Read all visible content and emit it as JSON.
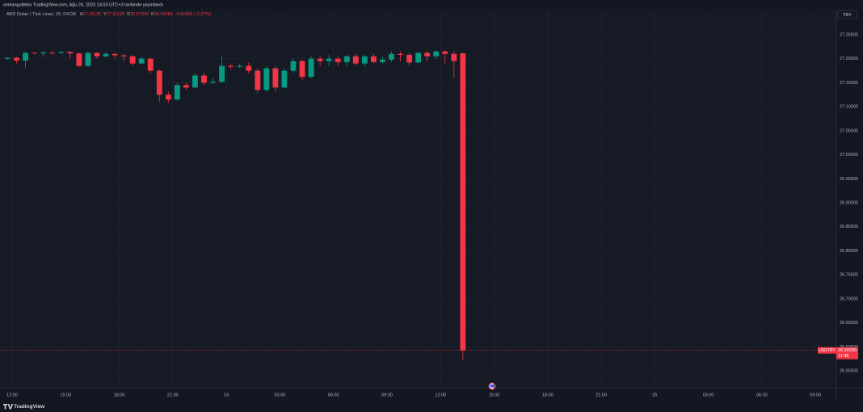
{
  "header": {
    "publisher": "serkangultekin TradingView.com, Ağu 24, 2023 14:03 UTC+3 tarihinde yayınlandı",
    "symbol_title": "ABD Doları / Türk Lirası, 15, FXCM",
    "legend": [
      {
        "key": "A",
        "value": "27.21135"
      },
      {
        "key": "Y",
        "value": "27.21135"
      },
      {
        "key": "D",
        "value": "26.57340"
      },
      {
        "key": "K",
        "value": "26.59280"
      }
    ],
    "change": "-0.61855 (-2.27%)",
    "currency": "TRY"
  },
  "footer": {
    "brand": "TradingView"
  },
  "chart_data": {
    "type": "candlestick",
    "up_color": "#089981",
    "down_color": "#f23645",
    "grid": true,
    "xlim": [
      -0.68,
      46.17
    ],
    "ylim": [
      26.515,
      27.302
    ],
    "xticks": [
      {
        "value": 0,
        "label": "12:00"
      },
      {
        "value": 3,
        "label": "15:00"
      },
      {
        "value": 6,
        "label": "18:00"
      },
      {
        "value": 9,
        "label": "21:00"
      },
      {
        "value": 12,
        "label": "24"
      },
      {
        "value": 15,
        "label": "03:00"
      },
      {
        "value": 18,
        "label": "06:00"
      },
      {
        "value": 21,
        "label": "09:00"
      },
      {
        "value": 24,
        "label": "12:00"
      },
      {
        "value": 27,
        "label": "15:00"
      },
      {
        "value": 30,
        "label": "18:00"
      },
      {
        "value": 33,
        "label": "21:00"
      },
      {
        "value": 36,
        "label": "25"
      },
      {
        "value": 39,
        "label": "03:00"
      },
      {
        "value": 42,
        "label": "06:00"
      },
      {
        "value": 45,
        "label": "09:00"
      }
    ],
    "yticks": [
      {
        "value": 27.25,
        "label": "27.25000"
      },
      {
        "value": 27.2,
        "label": "27.20000"
      },
      {
        "value": 27.15,
        "label": "27.15000"
      },
      {
        "value": 27.1,
        "label": "27.10000"
      },
      {
        "value": 27.05,
        "label": "27.05000"
      },
      {
        "value": 27.0,
        "label": "27.00000"
      },
      {
        "value": 26.95,
        "label": "26.95000"
      },
      {
        "value": 26.9,
        "label": "26.90000"
      },
      {
        "value": 26.85,
        "label": "26.85000"
      },
      {
        "value": 26.8,
        "label": "26.80000"
      },
      {
        "value": 26.75,
        "label": "26.75000"
      },
      {
        "value": 26.7,
        "label": "26.70000"
      },
      {
        "value": 26.65,
        "label": "26.65000"
      },
      {
        "value": 26.6,
        "label": "26.60000"
      },
      {
        "value": 26.55,
        "label": "26.55000"
      }
    ],
    "x": [
      -0.25,
      0.25,
      0.75,
      1.25,
      1.75,
      2.25,
      2.75,
      3.25,
      3.75,
      4.25,
      4.75,
      5.25,
      5.75,
      6.25,
      6.75,
      7.25,
      7.75,
      8.25,
      8.75,
      9.25,
      9.75,
      10.25,
      10.75,
      11.25,
      11.75,
      12.25,
      12.75,
      13.25,
      13.75,
      14.25,
      14.75,
      15.25,
      15.75,
      16.25,
      16.75,
      17.25,
      17.75,
      18.25,
      18.75,
      19.25,
      19.75,
      20.25,
      20.75,
      21.25,
      21.75,
      22.25,
      22.75,
      23.25,
      23.75,
      24.25,
      24.75,
      25.25
    ],
    "open": [
      27.2,
      27.202,
      27.196,
      27.212,
      27.211,
      27.213,
      27.212,
      27.214,
      27.211,
      27.185,
      27.212,
      27.205,
      27.21,
      27.207,
      27.205,
      27.19,
      27.2,
      27.175,
      27.125,
      27.115,
      27.145,
      27.14,
      27.165,
      27.15,
      27.152,
      27.185,
      27.183,
      27.185,
      27.175,
      27.135,
      27.18,
      27.14,
      27.175,
      27.195,
      27.162,
      27.2,
      27.195,
      27.2,
      27.193,
      27.205,
      27.19,
      27.205,
      27.193,
      27.198,
      27.21,
      27.208,
      27.192,
      27.212,
      27.205,
      27.215,
      27.21,
      27.21135
    ],
    "high": [
      27.203,
      27.204,
      27.214,
      27.214,
      27.216,
      27.215,
      27.216,
      27.216,
      27.213,
      27.214,
      27.214,
      27.213,
      27.212,
      27.21,
      27.208,
      27.204,
      27.202,
      27.178,
      27.132,
      27.15,
      27.15,
      27.17,
      27.17,
      27.16,
      27.205,
      27.19,
      27.19,
      27.192,
      27.18,
      27.185,
      27.185,
      27.18,
      27.2,
      27.198,
      27.205,
      27.205,
      27.208,
      27.205,
      27.208,
      27.21,
      27.208,
      27.21,
      27.205,
      27.215,
      27.215,
      27.212,
      27.215,
      27.216,
      27.218,
      27.218,
      27.215,
      27.21135
    ],
    "low": [
      27.198,
      27.19,
      27.18,
      27.209,
      27.205,
      27.208,
      27.21,
      27.2,
      27.183,
      27.183,
      27.2,
      27.203,
      27.2,
      27.195,
      27.185,
      27.188,
      27.17,
      27.11,
      27.108,
      27.112,
      27.135,
      27.138,
      27.145,
      27.148,
      27.15,
      27.178,
      27.18,
      27.17,
      27.128,
      27.13,
      27.132,
      27.138,
      27.17,
      27.155,
      27.16,
      27.185,
      27.185,
      27.185,
      27.185,
      27.185,
      27.183,
      27.19,
      27.19,
      27.193,
      27.195,
      27.185,
      27.19,
      27.195,
      27.2,
      27.19,
      27.16,
      26.5734
    ],
    "close": [
      27.202,
      27.196,
      27.212,
      27.211,
      27.213,
      27.212,
      27.214,
      27.211,
      27.185,
      27.212,
      27.205,
      27.21,
      27.207,
      27.205,
      27.19,
      27.2,
      27.175,
      27.125,
      27.115,
      27.145,
      27.14,
      27.165,
      27.15,
      27.152,
      27.185,
      27.183,
      27.185,
      27.175,
      27.135,
      27.18,
      27.14,
      27.175,
      27.195,
      27.162,
      27.2,
      27.195,
      27.2,
      27.193,
      27.205,
      27.19,
      27.205,
      27.193,
      27.198,
      27.21,
      27.208,
      27.192,
      27.212,
      27.205,
      27.215,
      27.21,
      27.195,
      26.5928
    ],
    "last_price": {
      "symbol": "USDTRY",
      "value": 26.5928,
      "label": "26.59280",
      "countdown": "11:48"
    }
  }
}
